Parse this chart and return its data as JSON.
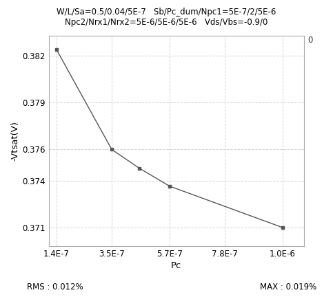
{
  "title_line1": "W/L/Sa=0.5/0.04/5E-7   Sb/Pc_dum/Npc1=5E-7/2/5E-6",
  "title_line2": "Npc2/Nrx1/Nrx2=5E-6/5E-6/5E-6   Vds/Vbs=-0.9/0",
  "xlabel": "Pc",
  "ylabel": "-Vtsat(V)",
  "rms_text": "RMS : 0.012%",
  "max_text": "MAX : 0.019%",
  "right_label": "0",
  "x_data": [
    1.4e-07,
    3.5e-07,
    4.55e-07,
    5.7e-07,
    1e-06
  ],
  "y_data": [
    0.3824,
    0.376,
    0.3748,
    0.37365,
    0.371
  ],
  "xticks": [
    1.4e-07,
    3.5e-07,
    5.7e-07,
    7.8e-07,
    1e-06
  ],
  "xtick_labels": [
    "1.4E-7",
    "3.5E-7",
    "5.7E-7",
    "7.8E-7",
    "1.0E-6"
  ],
  "yticks": [
    0.371,
    0.374,
    0.376,
    0.379,
    0.382
  ],
  "ytick_labels": [
    "0.371",
    "0.374",
    "0.376",
    "0.379",
    "0.382"
  ],
  "xlim": [
    1.1e-07,
    1.08e-06
  ],
  "ylim": [
    0.3698,
    0.3833
  ],
  "line_color": "#555555",
  "marker": "s",
  "marker_size": 3,
  "bg_color": "#ffffff",
  "grid_color": "#cccccc",
  "title_fontsize": 8.5,
  "axis_label_fontsize": 9.5,
  "tick_fontsize": 8.5
}
